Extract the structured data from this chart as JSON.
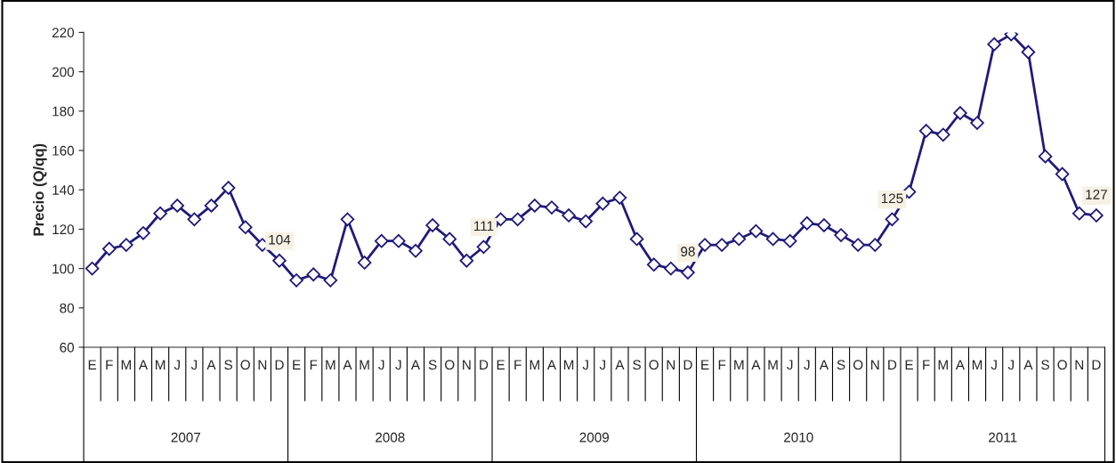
{
  "chart_data": {
    "type": "line",
    "ylabel": "Precio (Q/qq)",
    "categories": [
      "E",
      "F",
      "M",
      "A",
      "M",
      "J",
      "J",
      "A",
      "S",
      "O",
      "N",
      "D",
      "E",
      "F",
      "M",
      "A",
      "M",
      "J",
      "J",
      "A",
      "S",
      "O",
      "N",
      "D",
      "E",
      "F",
      "M",
      "A",
      "M",
      "J",
      "J",
      "A",
      "S",
      "O",
      "N",
      "D",
      "E",
      "F",
      "M",
      "A",
      "M",
      "J",
      "J",
      "A",
      "S",
      "O",
      "N",
      "D",
      "E",
      "F",
      "M",
      "A",
      "M",
      "J",
      "J",
      "A",
      "S",
      "O",
      "N",
      "D"
    ],
    "series": [
      {
        "color": "#1f1a7a",
        "values": [
          100,
          110,
          112,
          118,
          128,
          132,
          125,
          132,
          141,
          121,
          112,
          104,
          94,
          97,
          94,
          125,
          103,
          114,
          114,
          109,
          122,
          115,
          104,
          111,
          125,
          125,
          132,
          131,
          127,
          124,
          133,
          136,
          115,
          102,
          100,
          98,
          112,
          112,
          115,
          119,
          115,
          114,
          123,
          122,
          117,
          112,
          112,
          125,
          139,
          170,
          168,
          179,
          174,
          214,
          219,
          210,
          157,
          148,
          128,
          127
        ],
        "value_labels": [
          null,
          null,
          null,
          null,
          null,
          null,
          null,
          null,
          null,
          null,
          null,
          "104",
          null,
          null,
          null,
          null,
          null,
          null,
          null,
          null,
          null,
          null,
          null,
          "111",
          null,
          null,
          null,
          null,
          null,
          null,
          null,
          null,
          null,
          null,
          null,
          "98",
          null,
          null,
          null,
          null,
          null,
          null,
          null,
          null,
          null,
          null,
          null,
          "125",
          null,
          null,
          null,
          null,
          null,
          null,
          null,
          null,
          null,
          null,
          null,
          "127"
        ]
      }
    ],
    "annotations": [
      "2007",
      "2008",
      "2009",
      "2010",
      "2011"
    ],
    "ylim": [
      60,
      220
    ],
    "yticks": [
      60,
      80,
      100,
      120,
      140,
      160,
      180,
      200,
      220
    ],
    "marker": "diamond",
    "line_style": "solid",
    "grid": false
  }
}
